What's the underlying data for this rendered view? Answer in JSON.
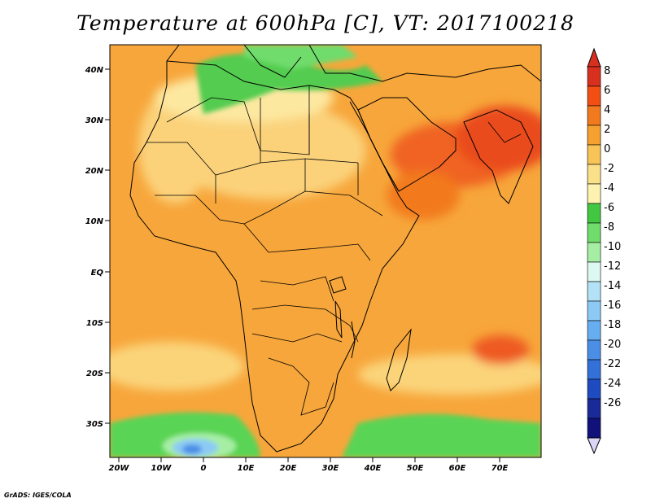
{
  "title": "Temperature at 600hPa [C], VT: 2017100218",
  "credit": "GrADS: IGES/COLA",
  "map": {
    "lat_labels": [
      "40N",
      "30N",
      "20N",
      "10N",
      "EQ",
      "10S",
      "20S",
      "30S"
    ],
    "lon_labels": [
      "20W",
      "10W",
      "0",
      "10E",
      "20E",
      "30E",
      "40E",
      "50E",
      "60E",
      "70E"
    ],
    "lon_range": [
      -22,
      80
    ],
    "lat_range": [
      -37,
      45
    ]
  },
  "colorbar": {
    "labels": [
      "8",
      "6",
      "4",
      "2",
      "0",
      "-2",
      "-4",
      "-6",
      "-8",
      "-10",
      "-12",
      "-14",
      "-16",
      "-18",
      "-20",
      "-22",
      "-24",
      "-26"
    ],
    "colors": [
      "#d7301f",
      "#f24f15",
      "#f27a1e",
      "#f5a130",
      "#f8c458",
      "#fbe08a",
      "#fdf2b0",
      "#43c742",
      "#6fdc6c",
      "#a6eea4",
      "#ddf8f0",
      "#b3e1f6",
      "#8ccaf5",
      "#66aef0",
      "#4b8ee6",
      "#3370d8",
      "#1e4cc0",
      "#1a2a96",
      "#10127a"
    ],
    "arrow_top": "#d7301f",
    "arrow_bottom": "#dcd6f6"
  },
  "colors": {
    "ocean": "#f7a63b",
    "land": "#f6ad3e",
    "saharan_cool": "#fbd27a",
    "arabian_hot": "#f06321",
    "med_green": "#52cc4f",
    "south_green": "#5ad454",
    "cold_pool": "#7fb6ee"
  }
}
